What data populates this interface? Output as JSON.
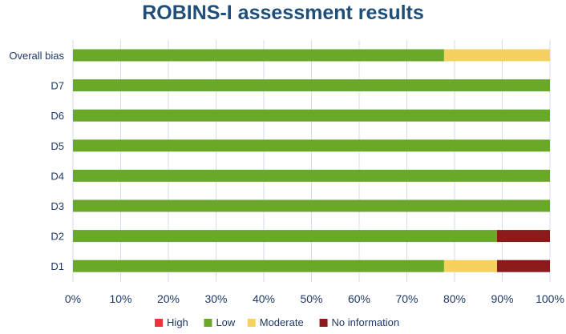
{
  "chart_data": {
    "type": "bar",
    "orientation": "horizontal",
    "stacked": true,
    "title": "ROBINS-I assessment results",
    "categories": [
      "Overall bias",
      "D7",
      "D6",
      "D5",
      "D4",
      "D3",
      "D2",
      "D1"
    ],
    "series": [
      {
        "name": "High",
        "color": "#e8363a",
        "values": [
          0,
          0,
          0,
          0,
          0,
          0,
          0,
          0
        ]
      },
      {
        "name": "Low",
        "color": "#6aa82a",
        "values": [
          77.8,
          100,
          100,
          100,
          100,
          100,
          88.9,
          77.8
        ]
      },
      {
        "name": "Moderate",
        "color": "#f5d160",
        "values": [
          22.2,
          0,
          0,
          0,
          0,
          0,
          0,
          11.1
        ]
      },
      {
        "name": "No information",
        "color": "#8b1a1a",
        "values": [
          0,
          0,
          0,
          0,
          0,
          0,
          11.1,
          11.1
        ]
      }
    ],
    "xlim": [
      0,
      100
    ],
    "xticks": [
      "0%",
      "10%",
      "20%",
      "30%",
      "40%",
      "50%",
      "60%",
      "70%",
      "80%",
      "90%",
      "100%"
    ],
    "grid": true,
    "legend_position": "bottom"
  }
}
